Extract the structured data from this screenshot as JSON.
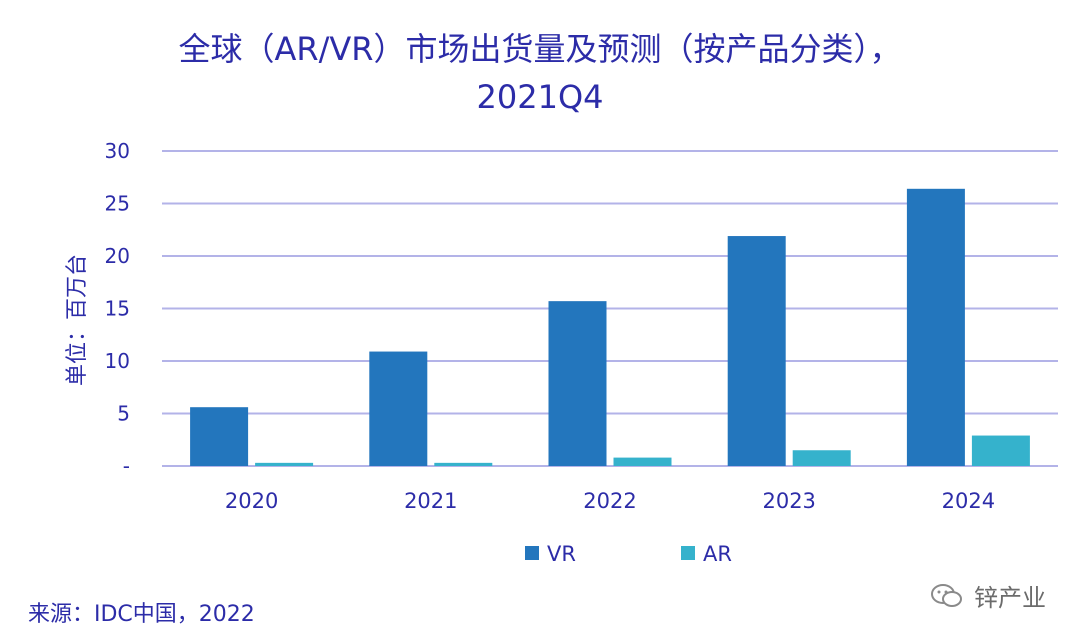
{
  "chart_data": {
    "type": "bar",
    "title": "全球（AR/VR）市场出货量及预测（按产品分类），",
    "subtitle": "2021Q4",
    "ylabel": "单位：百万台",
    "xlabel": "",
    "categories": [
      "2020",
      "2021",
      "2022",
      "2023",
      "2024"
    ],
    "series": [
      {
        "name": "VR",
        "values": [
          5.6,
          10.9,
          15.7,
          21.9,
          26.4
        ],
        "color": "#2376bd"
      },
      {
        "name": "AR",
        "values": [
          0.3,
          0.3,
          0.8,
          1.5,
          2.9
        ],
        "color": "#35b2cc"
      }
    ],
    "ylim": [
      0,
      30
    ],
    "yticks": [
      0,
      5,
      10,
      15,
      20,
      25,
      30
    ],
    "ytick_labels": [
      "-",
      "5",
      "10",
      "15",
      "20",
      "25",
      "30"
    ],
    "grid": true,
    "legend": "bottom"
  },
  "source": "来源：IDC中国，2022",
  "watermark": "锌产业"
}
